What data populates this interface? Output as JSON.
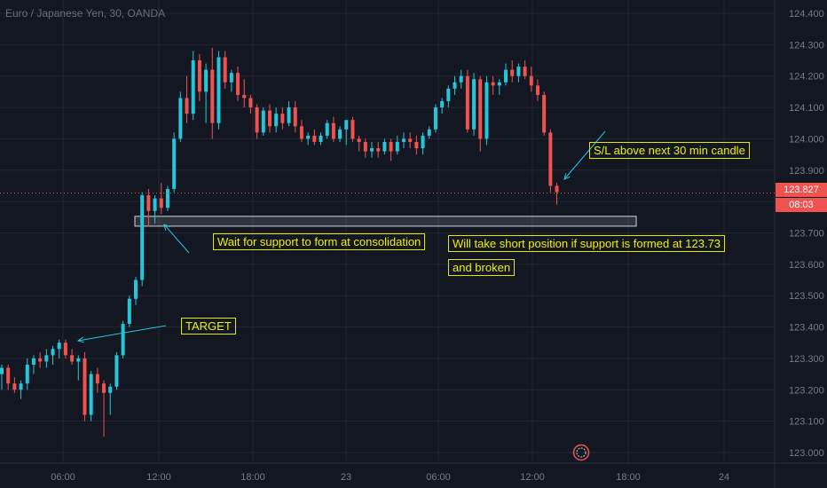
{
  "header": {
    "symbol_title": "Euro / Japanese Yen, 30, OANDA"
  },
  "price_tags": {
    "last_price": "123.827",
    "countdown": "08:03"
  },
  "annotations": {
    "target": "TARGET",
    "wait_support": "Wait for support to form at consolidation",
    "short_line1": "Will take short position if support is formed at 123.73",
    "short_line2": "and broken",
    "stop_loss": "S/L above next 30 min candle"
  },
  "colors": {
    "up": "#26c6da",
    "down": "#ef5350",
    "background": "#131722",
    "grid": "#242733",
    "annotation": "#e6e600",
    "axis_text": "#787b86"
  },
  "chart_data": {
    "type": "candlestick",
    "title": "Euro / Japanese Yen, 30, OANDA",
    "xlabel": "",
    "ylabel": "",
    "ylim": [
      122.97,
      124.47
    ],
    "y_ticks": [
      "124.400",
      "124.300",
      "124.200",
      "124.100",
      "124.000",
      "123.900",
      "123.800",
      "123.700",
      "123.600",
      "123.500",
      "123.400",
      "123.300",
      "123.200",
      "123.100",
      "123.000"
    ],
    "x_ticks": [
      "06:00",
      "12:00",
      "18:00",
      "23",
      "06:00",
      "12:00",
      "18:00",
      "24"
    ],
    "support_zone": [
      123.73,
      123.75
    ],
    "last_price": 123.827,
    "candles": [
      {
        "o": 123.25,
        "h": 123.28,
        "l": 123.2,
        "c": 123.27
      },
      {
        "o": 123.27,
        "h": 123.28,
        "l": 123.2,
        "c": 123.22
      },
      {
        "o": 123.22,
        "h": 123.24,
        "l": 123.19,
        "c": 123.2
      },
      {
        "o": 123.2,
        "h": 123.23,
        "l": 123.17,
        "c": 123.22
      },
      {
        "o": 123.22,
        "h": 123.3,
        "l": 123.2,
        "c": 123.28
      },
      {
        "o": 123.28,
        "h": 123.31,
        "l": 123.25,
        "c": 123.3
      },
      {
        "o": 123.3,
        "h": 123.32,
        "l": 123.27,
        "c": 123.29
      },
      {
        "o": 123.29,
        "h": 123.33,
        "l": 123.27,
        "c": 123.31
      },
      {
        "o": 123.31,
        "h": 123.34,
        "l": 123.28,
        "c": 123.33
      },
      {
        "o": 123.33,
        "h": 123.36,
        "l": 123.3,
        "c": 123.35
      },
      {
        "o": 123.35,
        "h": 123.36,
        "l": 123.3,
        "c": 123.31
      },
      {
        "o": 123.31,
        "h": 123.33,
        "l": 123.28,
        "c": 123.29
      },
      {
        "o": 123.29,
        "h": 123.31,
        "l": 123.23,
        "c": 123.3
      },
      {
        "o": 123.3,
        "h": 123.32,
        "l": 123.1,
        "c": 123.12
      },
      {
        "o": 123.12,
        "h": 123.26,
        "l": 123.1,
        "c": 123.25
      },
      {
        "o": 123.25,
        "h": 123.27,
        "l": 123.19,
        "c": 123.22
      },
      {
        "o": 123.22,
        "h": 123.23,
        "l": 123.05,
        "c": 123.19
      },
      {
        "o": 123.19,
        "h": 123.22,
        "l": 123.12,
        "c": 123.21
      },
      {
        "o": 123.21,
        "h": 123.32,
        "l": 123.2,
        "c": 123.31
      },
      {
        "o": 123.31,
        "h": 123.42,
        "l": 123.3,
        "c": 123.41
      },
      {
        "o": 123.41,
        "h": 123.5,
        "l": 123.4,
        "c": 123.49
      },
      {
        "o": 123.49,
        "h": 123.56,
        "l": 123.47,
        "c": 123.55
      },
      {
        "o": 123.55,
        "h": 123.83,
        "l": 123.53,
        "c": 123.82
      },
      {
        "o": 123.82,
        "h": 123.84,
        "l": 123.72,
        "c": 123.77
      },
      {
        "o": 123.77,
        "h": 123.82,
        "l": 123.73,
        "c": 123.81
      },
      {
        "o": 123.81,
        "h": 123.86,
        "l": 123.76,
        "c": 123.78
      },
      {
        "o": 123.78,
        "h": 123.85,
        "l": 123.77,
        "c": 123.84
      },
      {
        "o": 123.84,
        "h": 124.02,
        "l": 123.83,
        "c": 124.0
      },
      {
        "o": 124.0,
        "h": 124.15,
        "l": 123.99,
        "c": 124.13
      },
      {
        "o": 124.13,
        "h": 124.2,
        "l": 124.05,
        "c": 124.08
      },
      {
        "o": 124.08,
        "h": 124.28,
        "l": 124.06,
        "c": 124.25
      },
      {
        "o": 124.25,
        "h": 124.27,
        "l": 124.12,
        "c": 124.15
      },
      {
        "o": 124.15,
        "h": 124.24,
        "l": 124.05,
        "c": 124.22
      },
      {
        "o": 124.22,
        "h": 124.29,
        "l": 124.0,
        "c": 124.05
      },
      {
        "o": 124.05,
        "h": 124.28,
        "l": 124.03,
        "c": 124.26
      },
      {
        "o": 124.26,
        "h": 124.28,
        "l": 124.16,
        "c": 124.18
      },
      {
        "o": 124.18,
        "h": 124.22,
        "l": 124.15,
        "c": 124.21
      },
      {
        "o": 124.21,
        "h": 124.23,
        "l": 124.12,
        "c": 124.14
      },
      {
        "o": 124.14,
        "h": 124.19,
        "l": 124.1,
        "c": 124.13
      },
      {
        "o": 124.13,
        "h": 124.14,
        "l": 124.08,
        "c": 124.1
      },
      {
        "o": 124.1,
        "h": 124.11,
        "l": 124.0,
        "c": 124.02
      },
      {
        "o": 124.02,
        "h": 124.1,
        "l": 124.01,
        "c": 124.09
      },
      {
        "o": 124.09,
        "h": 124.11,
        "l": 124.02,
        "c": 124.04
      },
      {
        "o": 124.04,
        "h": 124.1,
        "l": 124.02,
        "c": 124.08
      },
      {
        "o": 124.08,
        "h": 124.1,
        "l": 124.03,
        "c": 124.05
      },
      {
        "o": 124.05,
        "h": 124.12,
        "l": 124.04,
        "c": 124.1
      },
      {
        "o": 124.1,
        "h": 124.12,
        "l": 124.02,
        "c": 124.04
      },
      {
        "o": 124.04,
        "h": 124.06,
        "l": 123.99,
        "c": 124.0
      },
      {
        "o": 124.0,
        "h": 124.02,
        "l": 123.98,
        "c": 124.01
      },
      {
        "o": 124.01,
        "h": 124.03,
        "l": 123.98,
        "c": 123.99
      },
      {
        "o": 123.99,
        "h": 124.02,
        "l": 123.98,
        "c": 124.01
      },
      {
        "o": 124.01,
        "h": 124.06,
        "l": 124.0,
        "c": 124.05
      },
      {
        "o": 124.05,
        "h": 124.07,
        "l": 123.99,
        "c": 124.0
      },
      {
        "o": 124.0,
        "h": 124.04,
        "l": 123.99,
        "c": 124.03
      },
      {
        "o": 124.03,
        "h": 124.05,
        "l": 123.98,
        "c": 124.06
      },
      {
        "o": 124.06,
        "h": 124.07,
        "l": 123.99,
        "c": 124.0
      },
      {
        "o": 124.0,
        "h": 124.01,
        "l": 123.96,
        "c": 123.99
      },
      {
        "o": 123.99,
        "h": 124.0,
        "l": 123.94,
        "c": 123.96
      },
      {
        "o": 123.96,
        "h": 123.99,
        "l": 123.94,
        "c": 123.97
      },
      {
        "o": 123.97,
        "h": 123.99,
        "l": 123.94,
        "c": 123.96
      },
      {
        "o": 123.96,
        "h": 124.0,
        "l": 123.95,
        "c": 123.99
      },
      {
        "o": 123.99,
        "h": 124.0,
        "l": 123.93,
        "c": 123.96
      },
      {
        "o": 123.96,
        "h": 124.01,
        "l": 123.95,
        "c": 123.99
      },
      {
        "o": 123.99,
        "h": 124.02,
        "l": 123.97,
        "c": 124.0
      },
      {
        "o": 124.0,
        "h": 124.02,
        "l": 123.97,
        "c": 123.99
      },
      {
        "o": 123.99,
        "h": 124.01,
        "l": 123.95,
        "c": 123.97
      },
      {
        "o": 123.97,
        "h": 124.02,
        "l": 123.95,
        "c": 124.01
      },
      {
        "o": 124.01,
        "h": 124.04,
        "l": 124.0,
        "c": 124.03
      },
      {
        "o": 124.03,
        "h": 124.11,
        "l": 124.02,
        "c": 124.1
      },
      {
        "o": 124.1,
        "h": 124.13,
        "l": 124.08,
        "c": 124.12
      },
      {
        "o": 124.12,
        "h": 124.17,
        "l": 124.1,
        "c": 124.16
      },
      {
        "o": 124.16,
        "h": 124.2,
        "l": 124.14,
        "c": 124.18
      },
      {
        "o": 124.18,
        "h": 124.22,
        "l": 124.16,
        "c": 124.2
      },
      {
        "o": 124.2,
        "h": 124.22,
        "l": 124.02,
        "c": 124.03
      },
      {
        "o": 124.03,
        "h": 124.21,
        "l": 124.01,
        "c": 124.19
      },
      {
        "o": 124.19,
        "h": 124.2,
        "l": 123.96,
        "c": 124.0
      },
      {
        "o": 124.0,
        "h": 124.2,
        "l": 123.98,
        "c": 124.18
      },
      {
        "o": 124.18,
        "h": 124.2,
        "l": 124.14,
        "c": 124.17
      },
      {
        "o": 124.17,
        "h": 124.19,
        "l": 124.14,
        "c": 124.18
      },
      {
        "o": 124.18,
        "h": 124.24,
        "l": 124.17,
        "c": 124.22
      },
      {
        "o": 124.22,
        "h": 124.25,
        "l": 124.18,
        "c": 124.2
      },
      {
        "o": 124.2,
        "h": 124.24,
        "l": 124.18,
        "c": 124.23
      },
      {
        "o": 124.23,
        "h": 124.25,
        "l": 124.19,
        "c": 124.2
      },
      {
        "o": 124.2,
        "h": 124.23,
        "l": 124.15,
        "c": 124.17
      },
      {
        "o": 124.17,
        "h": 124.19,
        "l": 124.12,
        "c": 124.14
      },
      {
        "o": 124.14,
        "h": 124.15,
        "l": 124.01,
        "c": 124.02
      },
      {
        "o": 124.02,
        "h": 124.03,
        "l": 123.83,
        "c": 123.85
      },
      {
        "o": 123.85,
        "h": 123.86,
        "l": 123.79,
        "c": 123.83
      }
    ]
  }
}
